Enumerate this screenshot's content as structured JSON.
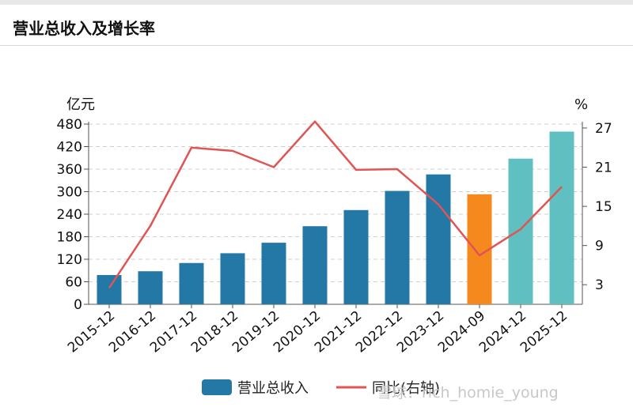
{
  "header": {
    "title": "营业总收入及增长率"
  },
  "chart_data": {
    "type": "bar",
    "title": "营业总收入及增长率",
    "categories": [
      "2015-12",
      "2016-12",
      "2017-12",
      "2018-12",
      "2019-12",
      "2020-12",
      "2021-12",
      "2022-12",
      "2023-12",
      "2024-09",
      "2024-12",
      "2025-12"
    ],
    "series": [
      {
        "name": "营业总收入",
        "type": "bar",
        "axis": "left",
        "values": [
          78,
          88,
          110,
          136,
          164,
          208,
          251,
          302,
          346,
          293,
          388,
          460
        ],
        "colors": [
          "#2478a6",
          "#2478a6",
          "#2478a6",
          "#2478a6",
          "#2478a6",
          "#2478a6",
          "#2478a6",
          "#2478a6",
          "#2478a6",
          "#f5891e",
          "#5fbfc1",
          "#5fbfc1"
        ]
      },
      {
        "name": "同比(右轴)",
        "type": "line",
        "axis": "right",
        "color": "#e05454",
        "values": [
          2.5,
          12.0,
          24.0,
          23.5,
          21.0,
          28.0,
          20.6,
          20.7,
          15.3,
          7.5,
          11.5,
          18.0
        ]
      }
    ],
    "y_left": {
      "label": "亿元",
      "ticks": [
        0,
        60,
        120,
        180,
        240,
        300,
        360,
        420,
        480
      ],
      "lim": [
        0,
        480
      ]
    },
    "y_right": {
      "label": "%",
      "ticks": [
        3,
        9,
        15,
        21,
        27
      ],
      "lim": [
        0,
        27.6
      ]
    },
    "grid": true,
    "legend_position": "bottom"
  },
  "legend": {
    "bar_label": "营业总收入",
    "line_label": "同比(右轴)"
  },
  "watermark": "雪球：rich_homie_young",
  "colors": {
    "bar_actual": "#2478a6",
    "bar_partial": "#f5891e",
    "bar_forecast": "#5fbfc1",
    "line": "#e05454",
    "grid": "#cfcfcf"
  }
}
